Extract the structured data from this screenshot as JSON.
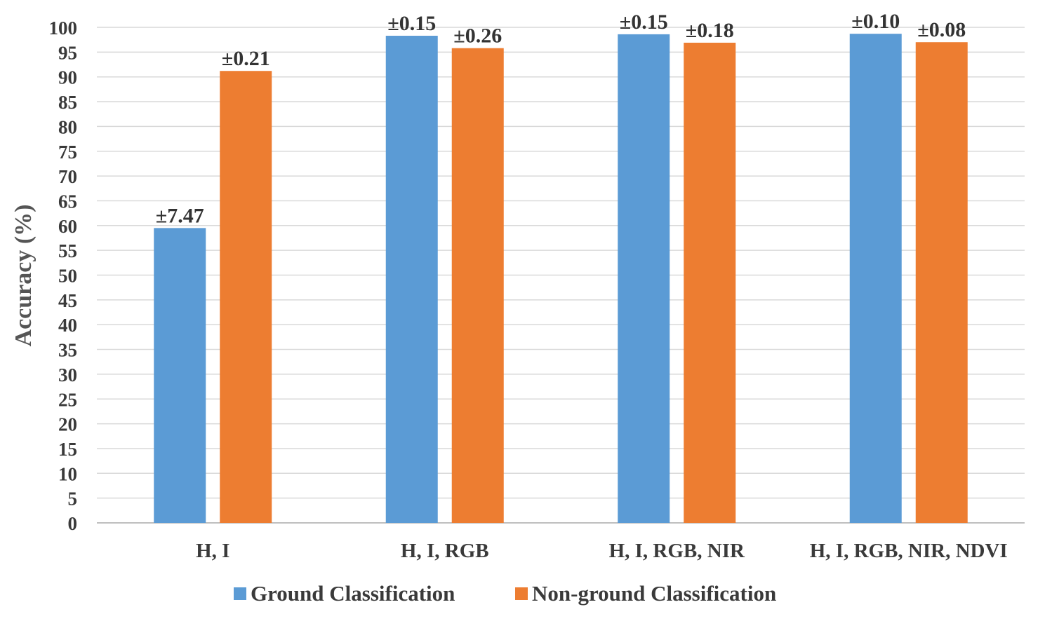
{
  "chart_data": {
    "type": "bar",
    "title": "",
    "xlabel": "",
    "ylabel": "Accuracy  (%)",
    "ylim": [
      0,
      100
    ],
    "ytick_step": 5,
    "grid": true,
    "legend_position": "bottom",
    "categories": [
      "H, I",
      "H, I, RGB",
      "H, I, RGB, NIR",
      "H, I, RGB, NIR, NDVI"
    ],
    "series": [
      {
        "name": "Ground Classification",
        "color": "#5b9bd5",
        "values": [
          59.5,
          98.3,
          98.6,
          98.7
        ],
        "error_labels": [
          "±7.47",
          "±0.15",
          "±0.15",
          "±0.10"
        ]
      },
      {
        "name": "Non-ground Classification",
        "color": "#ed7d31",
        "values": [
          91.2,
          95.8,
          96.9,
          97.0
        ],
        "error_labels": [
          "±0.21",
          "±0.26",
          "±0.18",
          "±0.08"
        ]
      }
    ]
  }
}
